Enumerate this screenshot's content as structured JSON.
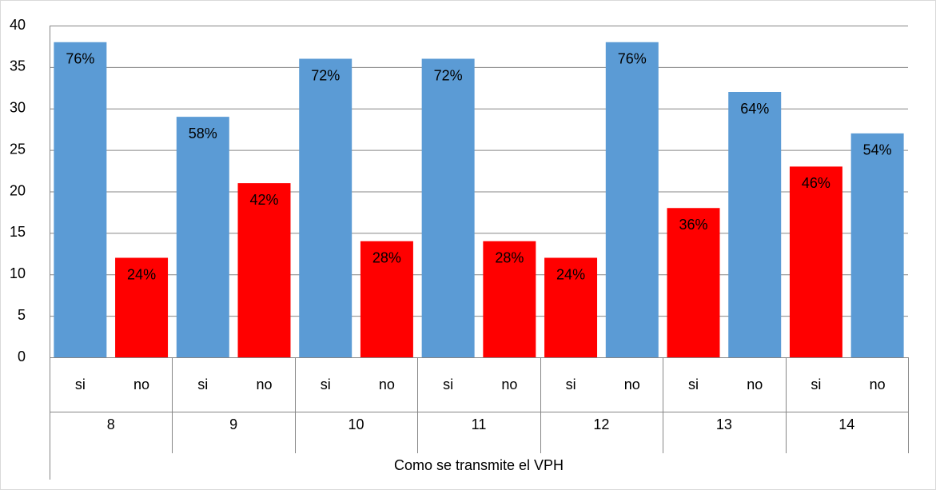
{
  "chart_data": {
    "type": "bar",
    "axis_title": "Como se transmite el VPH",
    "groups": [
      "8",
      "9",
      "10",
      "11",
      "12",
      "13",
      "14"
    ],
    "categories": [
      "si",
      "no",
      "si",
      "no",
      "si",
      "no",
      "si",
      "no",
      "si",
      "no",
      "si",
      "no",
      "si",
      "no"
    ],
    "values": [
      38,
      12,
      29,
      21,
      36,
      14,
      36,
      14,
      12,
      38,
      18,
      32,
      23,
      27
    ],
    "value_labels": [
      "76%",
      "24%",
      "58%",
      "42%",
      "72%",
      "28%",
      "72%",
      "28%",
      "24%",
      "76%",
      "36%",
      "64%",
      "46%",
      "54%"
    ],
    "colors": [
      "#5b9bd5",
      "#ff0000",
      "#5b9bd5",
      "#ff0000",
      "#5b9bd5",
      "#ff0000",
      "#5b9bd5",
      "#ff0000",
      "#ff0000",
      "#5b9bd5",
      "#ff0000",
      "#5b9bd5",
      "#ff0000",
      "#5b9bd5"
    ],
    "ylim": [
      0,
      40
    ],
    "yticks": [
      0,
      5,
      10,
      15,
      20,
      25,
      30,
      35,
      40
    ],
    "grid": true
  }
}
